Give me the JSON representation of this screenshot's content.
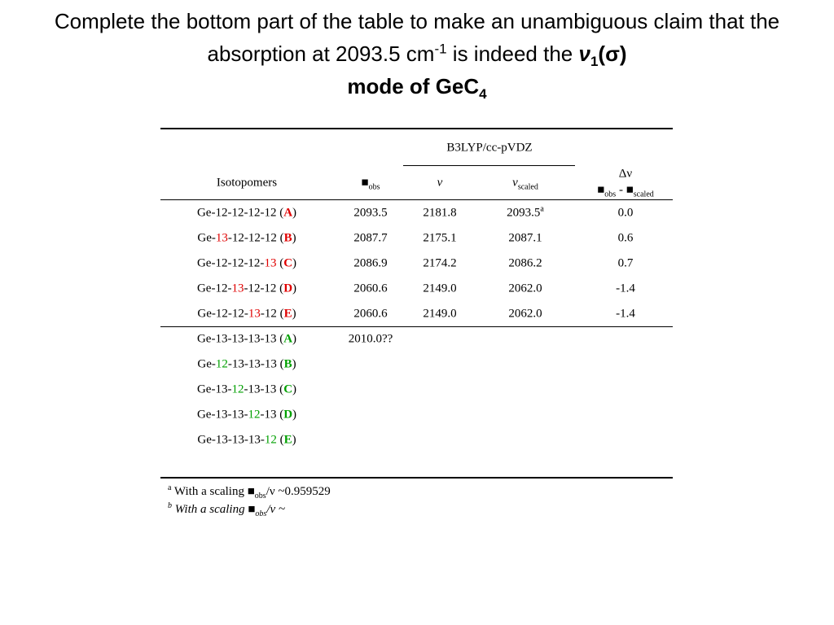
{
  "title": {
    "text": "Complete the bottom part of the table to make an unambiguous claim that the absorption at 2093.5 cm",
    "sup": "-1",
    "mid": " is indeed the ",
    "nu": "ν",
    "nu_sub": "1",
    "mode": "(σ)",
    "end": "mode of GeC",
    "end_sub": "4"
  },
  "table": {
    "method": "B3LYP/cc-pVDZ",
    "headers": {
      "isotopomers": "Isotopomers",
      "obs": "■",
      "obs_sub": "obs",
      "nu": "ν",
      "nu_scaled": "ν",
      "nu_scaled_sub": "scaled",
      "delta": "Δν",
      "delta_a": "■",
      "delta_a_sub": "obs",
      "delta_minus": " - ",
      "delta_b": "■",
      "delta_b_sub": "scaled"
    },
    "rows": [
      {
        "label": [
          {
            "text": "Ge-12-12-12-12 ("
          },
          {
            "text": "A",
            "color": "#e00000",
            "bold": true
          },
          {
            "text": ")"
          }
        ],
        "cells": [
          "2093.5",
          "2181.8",
          "2093.5",
          "0.0"
        ],
        "note": "a"
      },
      {
        "label": [
          {
            "text": "Ge-"
          },
          {
            "text": "13",
            "color": "#e00000"
          },
          {
            "text": "-12-12-12 ("
          },
          {
            "text": "B",
            "color": "#e00000",
            "bold": true
          },
          {
            "text": ")"
          }
        ],
        "cells": [
          "2087.7",
          "2175.1",
          "2087.1",
          "0.6"
        ]
      },
      {
        "label": [
          {
            "text": "Ge-12-12-12-"
          },
          {
            "text": "13",
            "color": "#e00000"
          },
          {
            "text": " ("
          },
          {
            "text": "C",
            "color": "#e00000",
            "bold": true
          },
          {
            "text": ")"
          }
        ],
        "cells": [
          "2086.9",
          "2174.2",
          "2086.2",
          "0.7"
        ]
      },
      {
        "label": [
          {
            "text": "Ge-12-"
          },
          {
            "text": "13",
            "color": "#e00000"
          },
          {
            "text": "-12-12 ("
          },
          {
            "text": "D",
            "color": "#e00000",
            "bold": true
          },
          {
            "text": ")"
          }
        ],
        "cells": [
          "2060.6",
          "2149.0",
          "2062.0",
          "-1.4"
        ]
      },
      {
        "label": [
          {
            "text": "Ge-12-12-"
          },
          {
            "text": "13",
            "color": "#e00000"
          },
          {
            "text": "-12 ("
          },
          {
            "text": "E",
            "color": "#e00000",
            "bold": true
          },
          {
            "text": ")"
          }
        ],
        "cells": [
          "2060.6",
          "2149.0",
          "2062.0",
          "-1.4"
        ]
      }
    ],
    "rows2": [
      {
        "label": [
          {
            "text": "Ge-13-13-13-13 ("
          },
          {
            "text": "A",
            "color": "#00a000",
            "bold": true
          },
          {
            "text": ")"
          }
        ],
        "cells": [
          "2010.0??"
        ]
      },
      {
        "label": [
          {
            "text": "Ge-"
          },
          {
            "text": "12",
            "color": "#00a000"
          },
          {
            "text": "-13-13-13 ("
          },
          {
            "text": "B",
            "color": "#00a000",
            "bold": true
          },
          {
            "text": ")"
          }
        ],
        "cells": []
      },
      {
        "label": [
          {
            "text": "Ge-13-"
          },
          {
            "text": "12",
            "color": "#00a000"
          },
          {
            "text": "-13-13 ("
          },
          {
            "text": "C",
            "color": "#00a000",
            "bold": true
          },
          {
            "text": ")"
          }
        ],
        "cells": []
      },
      {
        "label": [
          {
            "text": "Ge-13-13-"
          },
          {
            "text": "12",
            "color": "#00a000"
          },
          {
            "text": "-13 ("
          },
          {
            "text": "D",
            "color": "#00a000",
            "bold": true
          },
          {
            "text": ")"
          }
        ],
        "cells": []
      },
      {
        "label": [
          {
            "text": "Ge-13-13-13-"
          },
          {
            "text": "12",
            "color": "#00a000"
          },
          {
            "text": " ("
          },
          {
            "text": "E",
            "color": "#00a000",
            "bold": true
          },
          {
            "text": ")"
          }
        ],
        "cells": []
      }
    ]
  },
  "footnotes": [
    {
      "mark": "a",
      "text": " With a scaling ",
      "sym": "■",
      "sub": "obs",
      "rest": "/ν ~0.959529"
    },
    {
      "mark": "b",
      "text": " With a scaling ",
      "sym": "■",
      "sub": "obs",
      "rest": "/ν ~"
    }
  ]
}
